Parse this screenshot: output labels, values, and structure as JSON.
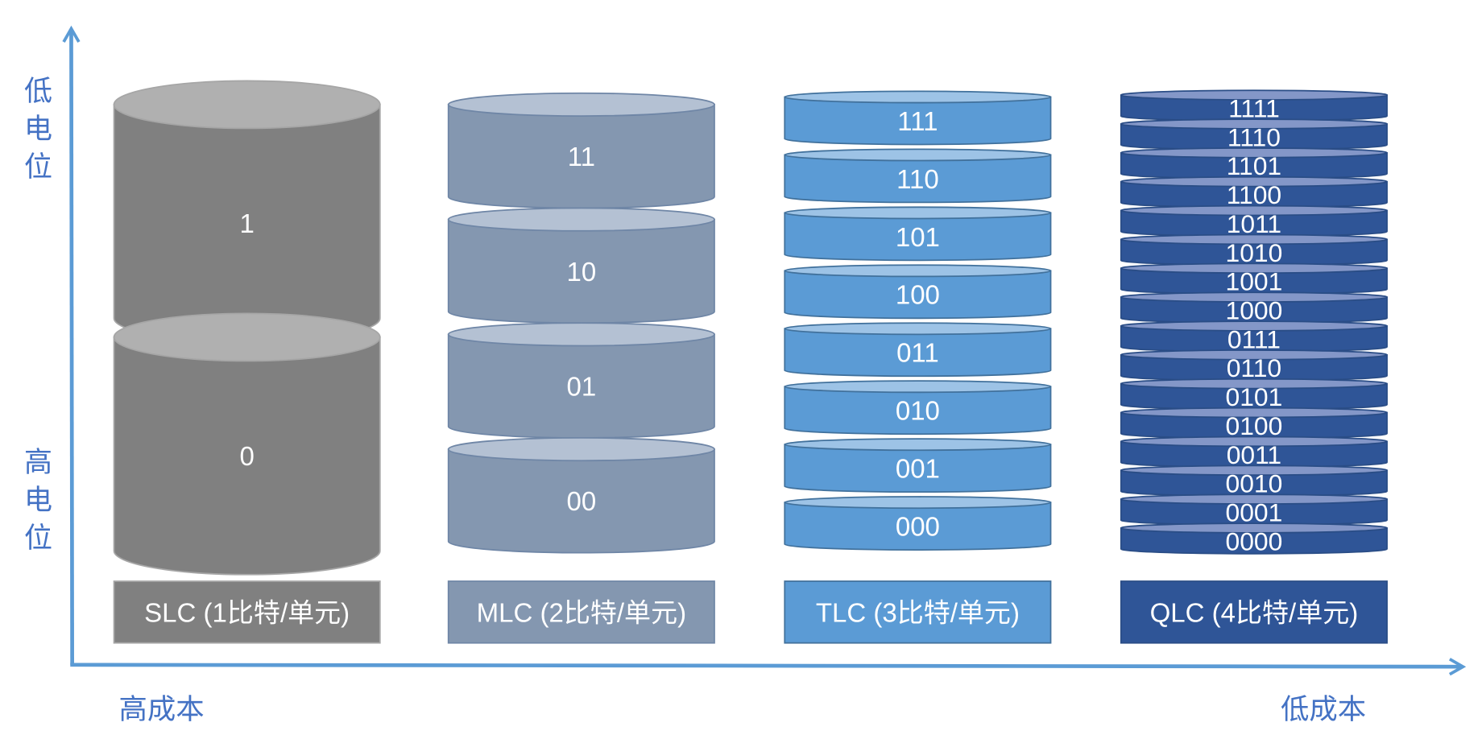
{
  "axes": {
    "color": "#5b9bd5",
    "label_color": "#4472c4",
    "y_top_label": "低电位",
    "y_bottom_label": "高电位",
    "x_left_label": "高成本",
    "x_right_label": "低成本"
  },
  "columns": [
    {
      "id": "slc",
      "label": "SLC (1比特/单元)",
      "body": "#808080",
      "top": "#b0b0b0",
      "stroke": "#a6a6a6",
      "states": [
        "1",
        "0"
      ]
    },
    {
      "id": "mlc",
      "label": "MLC (2比特/单元)",
      "body": "#8497b0",
      "top": "#b4c1d3",
      "stroke": "#6f86a6",
      "states": [
        "11",
        "10",
        "01",
        "00"
      ]
    },
    {
      "id": "tlc",
      "label": "TLC (3比特/单元)",
      "body": "#5b9bd5",
      "top": "#9dc3e6",
      "stroke": "#41719c",
      "states": [
        "111",
        "110",
        "101",
        "100",
        "011",
        "010",
        "001",
        "000"
      ]
    },
    {
      "id": "qlc",
      "label": "QLC (4比特/单元)",
      "body": "#2f5597",
      "top": "#8497c8",
      "stroke": "#2a4d86",
      "states": [
        "1111",
        "1110",
        "1101",
        "1100",
        "1011",
        "1010",
        "1001",
        "1000",
        "0111",
        "0110",
        "0101",
        "0100",
        "0011",
        "0010",
        "0001",
        "0000"
      ]
    }
  ]
}
